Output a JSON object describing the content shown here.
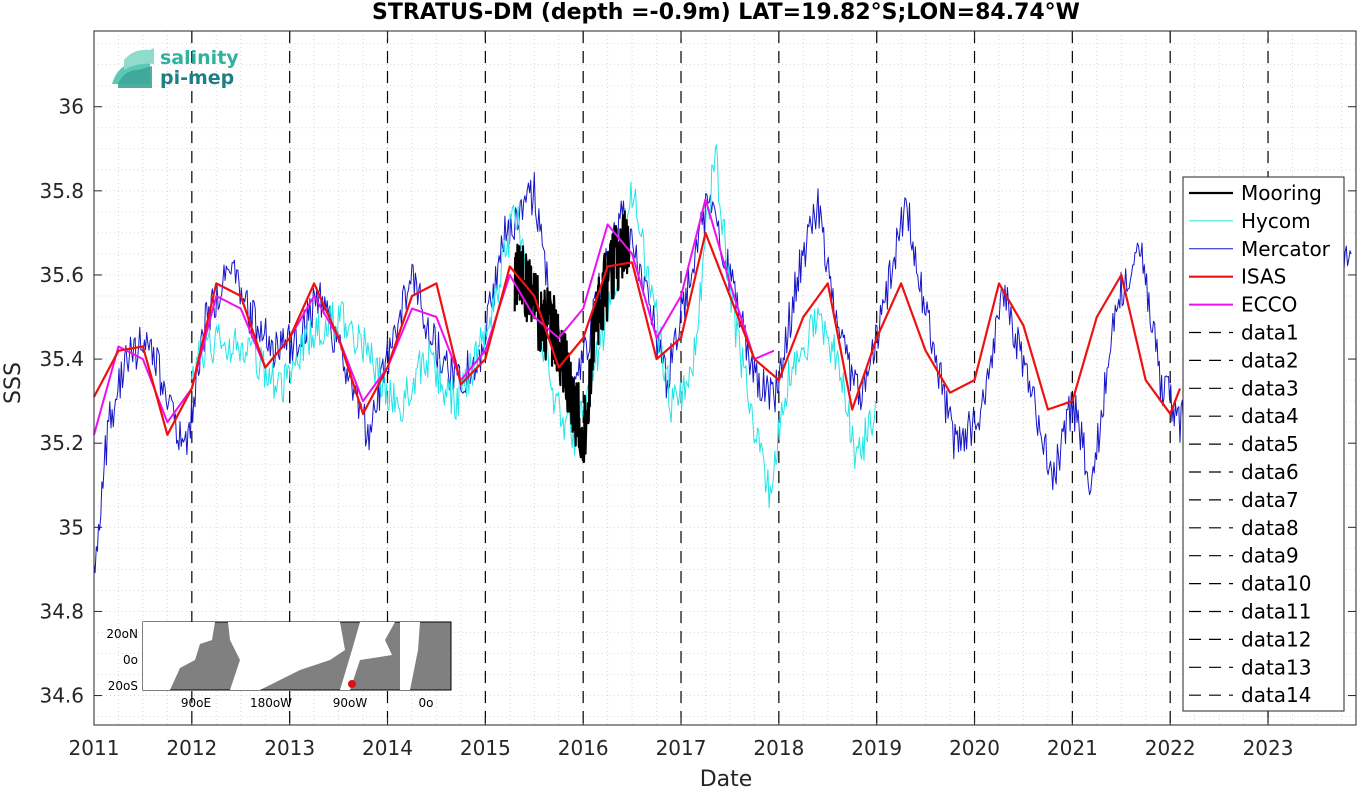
{
  "chart_data": {
    "type": "line",
    "title": "STRATUS-DM (depth =-0.9m) LAT=19.82°S;LON=84.74°W",
    "xlabel": "Date",
    "ylabel": "SSS",
    "xlim": [
      "2011-01-01",
      "2023-11-25"
    ],
    "ylim": [
      34.53,
      36.18
    ],
    "xticks": [
      "2011",
      "2012",
      "2013",
      "2014",
      "2015",
      "2016",
      "2017",
      "2018",
      "2019",
      "2020",
      "2021",
      "2022",
      "2023"
    ],
    "yticks": [
      "34.6",
      "34.8",
      "35",
      "35.2",
      "35.4",
      "35.6",
      "35.8",
      "36"
    ],
    "grid": "dotted",
    "legend_position": "right",
    "vertical_markers": [
      "2012",
      "2013",
      "2014",
      "2015",
      "2016",
      "2017",
      "2018",
      "2019",
      "2020",
      "2021",
      "2022",
      "2023"
    ],
    "series": [
      {
        "name": "Mooring",
        "color": "#000000",
        "x": [
          2015.3,
          2015.38,
          2015.46,
          2015.55,
          2015.63,
          2015.71,
          2015.8,
          2015.88,
          2015.96,
          2016.0,
          2016.1,
          2016.2,
          2016.3,
          2016.4,
          2016.47
        ],
        "y": [
          35.6,
          35.58,
          35.55,
          35.5,
          35.48,
          35.46,
          35.4,
          35.32,
          35.25,
          35.18,
          35.45,
          35.55,
          35.62,
          35.68,
          35.65
        ]
      },
      {
        "name": "Hycom",
        "color": "#22e5e8",
        "x": [
          2012.0,
          2012.3,
          2012.6,
          2012.9,
          2013.2,
          2013.5,
          2013.8,
          2014.1,
          2014.4,
          2014.7,
          2015.0,
          2015.3,
          2015.5,
          2015.7,
          2015.9,
          2016.1,
          2016.3,
          2016.5,
          2016.7,
          2016.9,
          2017.1,
          2017.35,
          2017.5,
          2017.7,
          2017.9,
          2018.1,
          2018.4,
          2018.6,
          2018.8,
          2019.0
        ],
        "y": [
          35.38,
          35.45,
          35.42,
          35.33,
          35.45,
          35.5,
          35.42,
          35.28,
          35.4,
          35.3,
          35.45,
          35.75,
          35.55,
          35.32,
          35.2,
          35.38,
          35.55,
          35.8,
          35.55,
          35.3,
          35.35,
          35.9,
          35.55,
          35.3,
          35.08,
          35.35,
          35.5,
          35.4,
          35.15,
          35.3
        ]
      },
      {
        "name": "Mercator",
        "color": "#1616c8",
        "x": [
          2011.0,
          2011.15,
          2011.35,
          2011.55,
          2011.75,
          2011.95,
          2012.15,
          2012.4,
          2012.6,
          2012.85,
          2013.1,
          2013.3,
          2013.55,
          2013.8,
          2014.0,
          2014.25,
          2014.45,
          2014.7,
          2014.95,
          2015.2,
          2015.5,
          2015.7,
          2015.9,
          2016.15,
          2016.4,
          2016.65,
          2016.85,
          2017.05,
          2017.3,
          2017.55,
          2017.75,
          2017.95,
          2018.2,
          2018.4,
          2018.6,
          2018.85,
          2019.05,
          2019.3,
          2019.55,
          2019.8,
          2020.05,
          2020.3,
          2020.55,
          2020.8,
          2021.0,
          2021.2,
          2021.45,
          2021.7,
          2021.9,
          2022.1,
          2022.4,
          2022.7,
          2023.0,
          2023.3,
          2023.55,
          2023.75,
          2023.85
        ],
        "y": [
          34.9,
          35.25,
          35.4,
          35.45,
          35.3,
          35.18,
          35.5,
          35.62,
          35.5,
          35.42,
          35.45,
          35.55,
          35.4,
          35.22,
          35.4,
          35.6,
          35.45,
          35.35,
          35.4,
          35.7,
          35.8,
          35.5,
          35.3,
          35.55,
          35.75,
          35.55,
          35.35,
          35.55,
          35.8,
          35.55,
          35.35,
          35.3,
          35.6,
          35.78,
          35.45,
          35.3,
          35.5,
          35.78,
          35.45,
          35.2,
          35.25,
          35.55,
          35.35,
          35.12,
          35.3,
          35.1,
          35.55,
          35.65,
          35.35,
          35.25,
          35.35,
          35.4,
          35.35,
          35.45,
          35.5,
          35.6,
          35.65
        ]
      },
      {
        "name": "ISAS",
        "color": "#ee1111",
        "x": [
          2011.0,
          2011.25,
          2011.5,
          2011.75,
          2012.0,
          2012.25,
          2012.5,
          2012.75,
          2013.0,
          2013.25,
          2013.5,
          2013.75,
          2014.0,
          2014.25,
          2014.5,
          2014.75,
          2015.0,
          2015.25,
          2015.5,
          2015.75,
          2016.0,
          2016.25,
          2016.5,
          2016.75,
          2017.0,
          2017.25,
          2017.5,
          2017.75,
          2018.0,
          2018.25,
          2018.5,
          2018.75,
          2019.0,
          2019.25,
          2019.5,
          2019.75,
          2020.0,
          2020.25,
          2020.5,
          2020.75,
          2021.0,
          2021.25,
          2021.5,
          2021.75,
          2022.0,
          2022.1
        ],
        "y": [
          35.31,
          35.42,
          35.43,
          35.22,
          35.33,
          35.58,
          35.55,
          35.38,
          35.45,
          35.58,
          35.45,
          35.27,
          35.38,
          35.55,
          35.58,
          35.34,
          35.4,
          35.62,
          35.55,
          35.38,
          35.45,
          35.62,
          35.63,
          35.4,
          35.45,
          35.7,
          35.55,
          35.4,
          35.35,
          35.5,
          35.58,
          35.28,
          35.45,
          35.58,
          35.42,
          35.32,
          35.35,
          35.58,
          35.48,
          35.28,
          35.3,
          35.5,
          35.6,
          35.35,
          35.27,
          35.33
        ]
      },
      {
        "name": "ECCO",
        "color": "#ee10ee",
        "x": [
          2011.0,
          2011.25,
          2011.5,
          2011.75,
          2012.0,
          2012.25,
          2012.5,
          2012.75,
          2013.0,
          2013.25,
          2013.5,
          2013.75,
          2014.0,
          2014.25,
          2014.5,
          2014.75,
          2015.0,
          2015.25,
          2015.5,
          2015.75,
          2016.0,
          2016.25,
          2016.5,
          2016.75,
          2017.0,
          2017.25,
          2017.5,
          2017.75,
          2017.95
        ],
        "y": [
          35.22,
          35.43,
          35.4,
          35.25,
          35.33,
          35.55,
          35.52,
          35.38,
          35.45,
          35.55,
          35.45,
          35.3,
          35.38,
          35.52,
          35.5,
          35.35,
          35.42,
          35.6,
          35.5,
          35.45,
          35.52,
          35.72,
          35.65,
          35.45,
          35.55,
          35.78,
          35.58,
          35.4,
          35.42
        ]
      }
    ],
    "extra_legend_entries": [
      "data1",
      "data2",
      "data3",
      "data4",
      "data5",
      "data6",
      "data7",
      "data8",
      "data9",
      "data10",
      "data11",
      "data12",
      "data13",
      "data14"
    ]
  },
  "logo": {
    "line1": "salinity",
    "line2": "pi-mep"
  },
  "inset_map": {
    "yticks": [
      "20oN",
      "0o",
      "20oS"
    ],
    "xticks": [
      "90oE",
      "180oW",
      "90oW",
      "0o"
    ]
  }
}
